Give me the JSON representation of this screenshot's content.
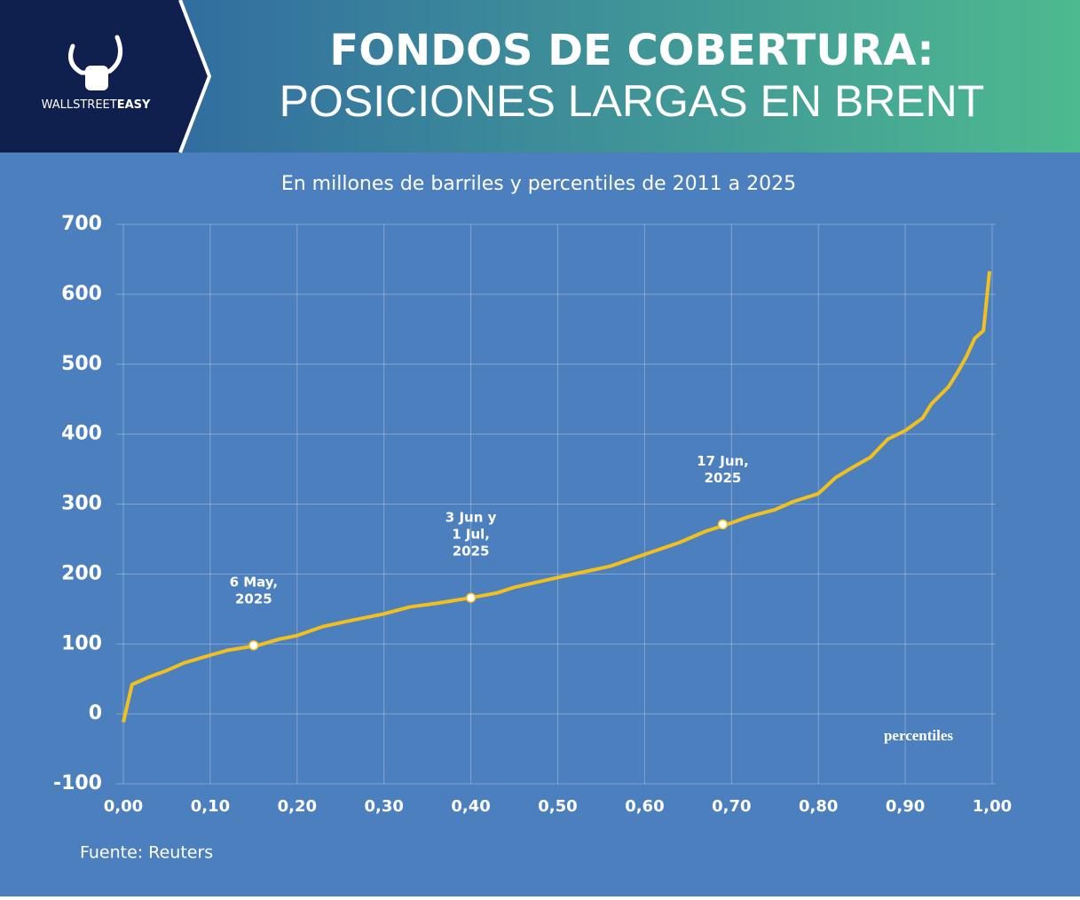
{
  "header": {
    "title_line1": "FONDOS DE COBERTURA:",
    "title_line2": "POSICIONES LARGAS EN BRENT",
    "logo_regular": "WALLSTREET",
    "logo_bold": "EASY"
  },
  "chart_data": {
    "type": "line",
    "subtitle": "En millones de barriles y percentiles de 2011 a 2025",
    "x_annotation": "percentiles",
    "source": "Fuente: Reuters",
    "color": "#f2c01e",
    "x": [
      0.0,
      0.01,
      0.03,
      0.05,
      0.07,
      0.1,
      0.12,
      0.155,
      0.18,
      0.2,
      0.23,
      0.26,
      0.3,
      0.33,
      0.36,
      0.4,
      0.43,
      0.45,
      0.5,
      0.53,
      0.56,
      0.6,
      0.64,
      0.67,
      0.695,
      0.72,
      0.75,
      0.77,
      0.8,
      0.82,
      0.84,
      0.86,
      0.88,
      0.9,
      0.92,
      0.93,
      0.95,
      0.96,
      0.97,
      0.98,
      0.99,
      0.997
    ],
    "values": [
      -12,
      42,
      53,
      62,
      73,
      84,
      91,
      98,
      107,
      112,
      125,
      133,
      143,
      153,
      158,
      166,
      173,
      181,
      195,
      203,
      211,
      228,
      245,
      261,
      271,
      282,
      292,
      303,
      315,
      338,
      353,
      367,
      393,
      405,
      423,
      443,
      468,
      488,
      510,
      537,
      548,
      633
    ],
    "highlights": [
      {
        "x": 0.15,
        "y": 98,
        "label_lines": [
          "6 May,",
          "2025"
        ]
      },
      {
        "x": 0.4,
        "y": 166,
        "label_lines": [
          "3 Jun y",
          "1 Jul,",
          "2025"
        ]
      },
      {
        "x": 0.69,
        "y": 271,
        "label_lines": [
          "17 Jun,",
          "2025"
        ]
      }
    ],
    "xlim": [
      0,
      1
    ],
    "ylim": [
      -100,
      700
    ],
    "xticks": [
      {
        "value": 0,
        "label": "0,00"
      },
      {
        "value": 0.1,
        "label": "0,10"
      },
      {
        "value": 0.2,
        "label": "0,20"
      },
      {
        "value": 0.3,
        "label": "0,30"
      },
      {
        "value": 0.4,
        "label": "0,40"
      },
      {
        "value": 0.5,
        "label": "0,50"
      },
      {
        "value": 0.6,
        "label": "0,60"
      },
      {
        "value": 0.7,
        "label": "0,70"
      },
      {
        "value": 0.8,
        "label": "0,80"
      },
      {
        "value": 0.9,
        "label": "0,90"
      },
      {
        "value": 1,
        "label": "1,00"
      }
    ],
    "yticks": [
      700,
      600,
      500,
      400,
      300,
      200,
      100,
      0,
      -100
    ],
    "grid": true
  }
}
